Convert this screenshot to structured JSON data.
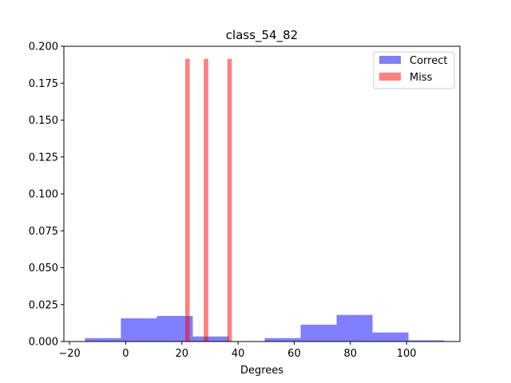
{
  "chart_data": {
    "type": "histogram",
    "title": "class_54_82",
    "xlabel": "Degrees",
    "ylabel": "",
    "xlim": [
      -22,
      119
    ],
    "ylim": [
      0,
      0.2
    ],
    "xticks": [
      -20,
      0,
      20,
      40,
      60,
      80,
      100
    ],
    "xtick_labels": [
      "−20",
      "0",
      "20",
      "40",
      "60",
      "80",
      "100"
    ],
    "yticks": [
      0.0,
      0.025,
      0.05,
      0.075,
      0.1,
      0.125,
      0.15,
      0.175,
      0.2
    ],
    "ytick_labels": [
      "0.000",
      "0.025",
      "0.050",
      "0.075",
      "0.100",
      "0.125",
      "0.150",
      "0.175",
      "0.200"
    ],
    "legend_position": "top-right",
    "series": [
      {
        "name": "Correct",
        "color": "#0000ff",
        "alpha": 0.5,
        "bins": [
          {
            "x0": -14.5,
            "x1": -1.7,
            "value": 0.0023
          },
          {
            "x0": -1.7,
            "x1": 11.1,
            "value": 0.0157
          },
          {
            "x0": 11.1,
            "x1": 23.9,
            "value": 0.0173
          },
          {
            "x0": 23.9,
            "x1": 36.7,
            "value": 0.0034
          },
          {
            "x0": 36.7,
            "x1": 49.5,
            "value": 0.0
          },
          {
            "x0": 49.5,
            "x1": 62.3,
            "value": 0.0023
          },
          {
            "x0": 62.3,
            "x1": 75.1,
            "value": 0.0114
          },
          {
            "x0": 75.1,
            "x1": 87.9,
            "value": 0.018
          },
          {
            "x0": 87.9,
            "x1": 100.7,
            "value": 0.0061
          },
          {
            "x0": 100.7,
            "x1": 113.5,
            "value": 0.0008
          }
        ]
      },
      {
        "name": "Miss",
        "color": "#ff0000",
        "alpha": 0.5,
        "bins": [
          {
            "x0": 21.2,
            "x1": 22.8,
            "value": 0.1915
          },
          {
            "x0": 27.8,
            "x1": 29.4,
            "value": 0.1915
          },
          {
            "x0": 36.2,
            "x1": 37.8,
            "value": 0.1915
          }
        ]
      }
    ]
  }
}
